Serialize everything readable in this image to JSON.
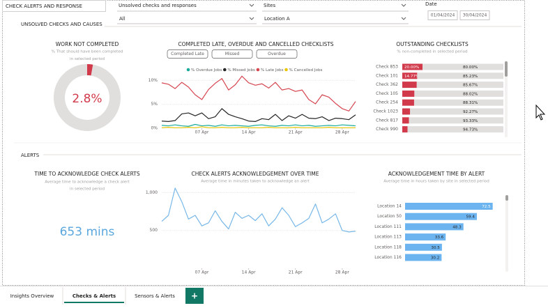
{
  "header": {
    "title": "CHECK ALERTS AND RESPONSE",
    "section": "UNSOLVED CHECKS AND CAUSES"
  },
  "filters": [
    {
      "label": "Unsolved checks and responses",
      "value": "All"
    },
    {
      "label": "Sites",
      "value": "Location A"
    },
    {
      "label": "Date",
      "values": [
        "01/04/2024",
        "30/04/2024"
      ]
    }
  ],
  "alerts_section": "ALERTS",
  "kpi": {
    "title": "TIME TO ACKNOWLEDGE CHECK ALERTS",
    "subtitle": [
      "Average time to acknowledge a check alert",
      "in selected period"
    ],
    "value": "653 mins"
  },
  "tabs": [
    "Insights Overview",
    "Checks & Alerts",
    "Sensors & Alerts",
    "+"
  ],
  "chart_data": [
    {
      "type": "donut",
      "title": "WORK NOT COMPLETED",
      "subtitle": [
        "% That should have been completed",
        "in selected period"
      ],
      "values": [
        2.8,
        97.2
      ],
      "value_labels": [
        "2.8%",
        null
      ],
      "colors": [
        "#d13a4b",
        "#e1dfdd"
      ]
    },
    {
      "type": "line",
      "title": "COMPLETED LATE, OVERDUE AND CANCELLED CHECKLISTS",
      "buttons": [
        "Completed Late",
        "Missed",
        "Overdue"
      ],
      "x": [
        1,
        2,
        3,
        4,
        5,
        6,
        7,
        8,
        9,
        10,
        11,
        12,
        13,
        14,
        15,
        16,
        17,
        18,
        19,
        20,
        21,
        22,
        23,
        24,
        25,
        26,
        27,
        28,
        29,
        30
      ],
      "xlim": [
        1,
        30
      ],
      "xticks": [
        {
          "value": 7,
          "label": "07 Apr"
        },
        {
          "value": 14,
          "label": "14 Apr"
        },
        {
          "value": 21,
          "label": "21 Apr"
        },
        {
          "value": 28,
          "label": "28 Apr"
        }
      ],
      "ylim": [
        0,
        10.5
      ],
      "yticks": [
        {
          "value": 0,
          "label": "0%"
        },
        {
          "value": 5,
          "label": "5%"
        },
        {
          "value": 10,
          "label": "10%"
        }
      ],
      "grid": true,
      "series": [
        {
          "name": "% Overdue Jobs",
          "color": "#1aab9b",
          "values": [
            0.6,
            0.5,
            0.7,
            0.5,
            0.4,
            0.8,
            0.5,
            0.6,
            0.4,
            0.7,
            0.5,
            0.6,
            0.5,
            0.4,
            0.6,
            0.7,
            0.5,
            0.4,
            0.6,
            0.5,
            0.7,
            0.5,
            0.6,
            0.4,
            0.5,
            0.6,
            0.5,
            0.7,
            0.6,
            0.5
          ]
        },
        {
          "name": "% Missed Jobs",
          "color": "#252423",
          "values": [
            1.5,
            1.4,
            1.6,
            3.0,
            3.2,
            2.6,
            3.2,
            2.0,
            2.4,
            4.1,
            2.9,
            2.4,
            2.0,
            1.5,
            1.4,
            2.0,
            1.8,
            2.9,
            1.6,
            2.6,
            2.1,
            2.9,
            2.1,
            2.0,
            2.4,
            1.6,
            2.1,
            2.0,
            1.8,
            2.8
          ]
        },
        {
          "name": "% Late Jobs",
          "color": "#d64550",
          "values": [
            9.5,
            9.2,
            8.3,
            9.6,
            8.6,
            7.0,
            6.0,
            8.1,
            9.4,
            10.4,
            8.0,
            9.1,
            10.9,
            9.5,
            9.0,
            9.3,
            8.4,
            9.6,
            8.0,
            8.3,
            7.7,
            8.0,
            6.0,
            5.1,
            7.0,
            6.5,
            5.2,
            4.1,
            3.6,
            5.6
          ]
        },
        {
          "name": "% Cancelled Jobs",
          "color": "#e8c600",
          "values": [
            0.1,
            0.2,
            0.1,
            0.1,
            0.2,
            0.1,
            0.3,
            0.1,
            0.1,
            0.2,
            0.1,
            0.1,
            0.2,
            0.1,
            0.1,
            0.1,
            0.2,
            0.1,
            0.1,
            0.1,
            0.2,
            0.1,
            0.1,
            0.1,
            0.1,
            0.2,
            0.1,
            0.1,
            0.1,
            0.1
          ]
        }
      ]
    },
    {
      "type": "stacked_hbar",
      "title": "OUTSTANDING CHECKLISTS",
      "subtitle": [
        "% non-completed in selected period"
      ],
      "categories": [
        "Check 853",
        "Check 101",
        "Check 362",
        "Check 105",
        "Check 254",
        "Check 1023",
        "Check 817",
        "Check 990"
      ],
      "xlim": [
        0,
        100
      ],
      "series": [
        {
          "color": "#d13a4b",
          "values": [
            20.0,
            14.77,
            14.33,
            11.98,
            11.69,
            7.73,
            6.67,
            5.27
          ],
          "value_labels": [
            "20.00%",
            "14.77%",
            null,
            null,
            null,
            null,
            null,
            null
          ]
        },
        {
          "color": "#e1dfdd",
          "values": [
            80.0,
            85.23,
            85.67,
            88.02,
            88.31,
            92.27,
            93.33,
            94.73
          ],
          "value_labels": [
            "80.00%",
            "85.23%",
            "85.67%",
            "88.02%",
            "88.31%",
            "92.27%",
            "93.33%",
            "94.73%"
          ]
        }
      ]
    },
    {
      "type": "line",
      "title": "CHECK ALERTS ACKNOWLEDGEMENT OVER TIME",
      "subtitle": [
        "Average time in minutes taken to acknowledge an alert"
      ],
      "x": [
        1,
        2,
        3,
        4,
        5,
        6,
        7,
        8,
        9,
        10,
        11,
        12,
        13,
        14,
        15,
        16,
        17,
        18,
        19,
        20,
        21,
        22,
        23,
        24,
        25,
        26,
        27,
        28,
        29,
        30
      ],
      "xlim": [
        1,
        30
      ],
      "xticks": [
        {
          "value": 7,
          "label": "07 Apr"
        },
        {
          "value": 14,
          "label": "14 Apr"
        },
        {
          "value": 21,
          "label": "21 Apr"
        },
        {
          "value": 28,
          "label": "28 Apr"
        }
      ],
      "ylim": [
        0,
        1050
      ],
      "yticks": [
        500,
        {
          "value": 1000,
          "label": "1,000"
        }
      ],
      "grid": true,
      "series": [
        {
          "color": "#76b7e8",
          "values": [
            620,
            700,
            1060,
            880,
            650,
            700,
            560,
            600,
            760,
            620,
            520,
            740,
            660,
            700,
            630,
            720,
            560,
            650,
            800,
            700,
            550,
            600,
            660,
            850,
            600,
            650,
            720,
            500,
            480,
            490
          ]
        }
      ]
    },
    {
      "type": "hbar",
      "title": "ACKNOWLEDGEMENT TIME BY ALERT",
      "subtitle": [
        "Average time in hours taken by site in selected period"
      ],
      "categories": [
        "Location 14",
        "Location 50",
        "Location 111",
        "Location 113",
        "Location 118",
        "Location 116"
      ],
      "values": [
        72.5,
        59.4,
        48.3,
        33.6,
        30.5,
        30.2
      ],
      "xlim": [
        0,
        75
      ],
      "color": "#6cb4f0"
    }
  ]
}
